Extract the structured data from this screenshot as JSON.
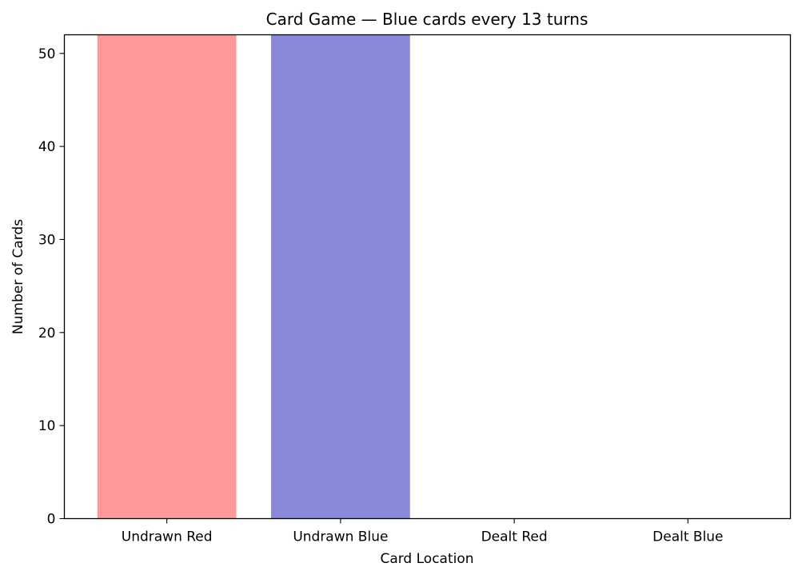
{
  "chart_data": {
    "type": "bar",
    "title": "Card Game — Blue cards every 13 turns",
    "xlabel": "Card Location",
    "ylabel": "Number of Cards",
    "categories": [
      "Undrawn Red",
      "Undrawn Blue",
      "Dealt Red",
      "Dealt Blue"
    ],
    "values": [
      52,
      52,
      0,
      0
    ],
    "colors": [
      "#ff9999",
      "#8989dc",
      "#ff9999",
      "#8989dc"
    ],
    "ylim": [
      0,
      52
    ],
    "yticks": [
      0,
      10,
      20,
      30,
      40,
      50
    ],
    "grid": false,
    "legend": "none"
  }
}
